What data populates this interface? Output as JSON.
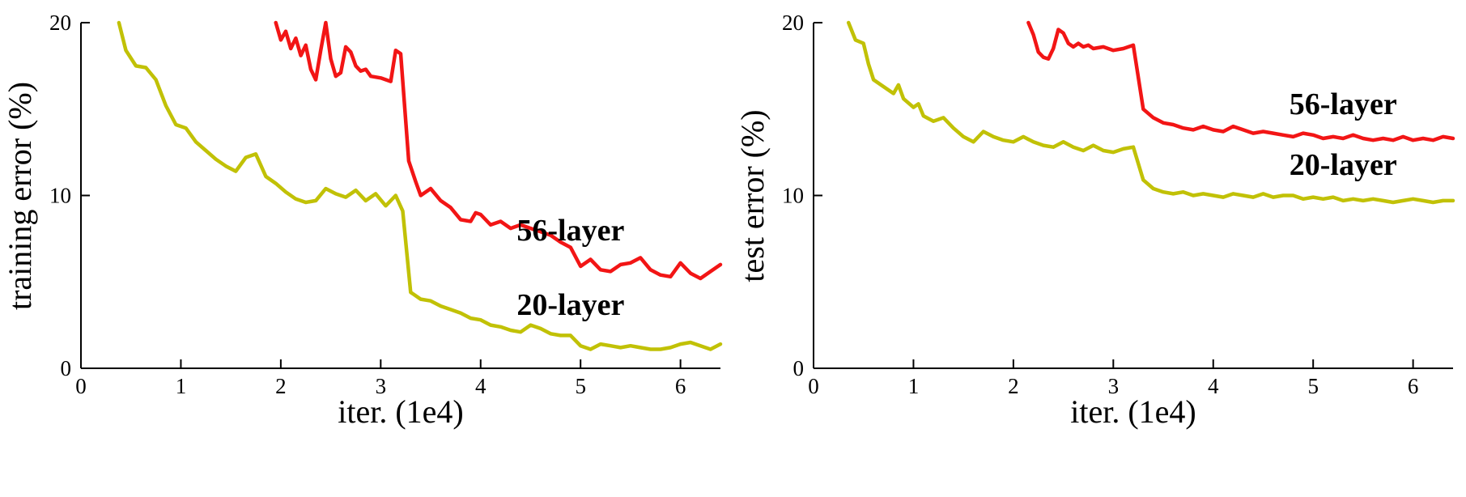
{
  "figure": {
    "background": "#ffffff",
    "line_colors": {
      "layer56": "#f21515",
      "layer20": "#c1c106"
    }
  },
  "chart_data": [
    {
      "type": "line",
      "title": "",
      "ylabel": "training error (%)",
      "xlabel": "iter. (1e4)",
      "xlim": [
        0,
        6.4
      ],
      "ylim": [
        0,
        20
      ],
      "xticks": [
        0,
        1,
        2,
        3,
        4,
        5,
        6
      ],
      "yticks": [
        0,
        10,
        20
      ],
      "grid": false,
      "legend": "none",
      "annotations": [
        {
          "text": "56-layer",
          "x": 4.9,
          "y": 7.4
        },
        {
          "text": "20-layer",
          "x": 4.9,
          "y": 3.1
        }
      ],
      "series": [
        {
          "name": "56-layer",
          "color": "#f21515",
          "points": [
            [
              1.95,
              20
            ],
            [
              2.0,
              19.0
            ],
            [
              2.05,
              19.5
            ],
            [
              2.1,
              18.5
            ],
            [
              2.15,
              19.1
            ],
            [
              2.2,
              18.1
            ],
            [
              2.25,
              18.7
            ],
            [
              2.3,
              17.3
            ],
            [
              2.35,
              16.7
            ],
            [
              2.4,
              18.4
            ],
            [
              2.45,
              20.0
            ],
            [
              2.5,
              17.9
            ],
            [
              2.55,
              16.9
            ],
            [
              2.6,
              17.1
            ],
            [
              2.65,
              18.6
            ],
            [
              2.7,
              18.3
            ],
            [
              2.75,
              17.5
            ],
            [
              2.8,
              17.2
            ],
            [
              2.85,
              17.3
            ],
            [
              2.9,
              16.9
            ],
            [
              3.0,
              16.8
            ],
            [
              3.1,
              16.6
            ],
            [
              3.15,
              18.4
            ],
            [
              3.2,
              18.2
            ],
            [
              3.28,
              12.0
            ],
            [
              3.35,
              10.8
            ],
            [
              3.4,
              10.0
            ],
            [
              3.5,
              10.4
            ],
            [
              3.6,
              9.7
            ],
            [
              3.7,
              9.3
            ],
            [
              3.8,
              8.6
            ],
            [
              3.9,
              8.5
            ],
            [
              3.95,
              9.0
            ],
            [
              4.0,
              8.9
            ],
            [
              4.1,
              8.3
            ],
            [
              4.2,
              8.5
            ],
            [
              4.3,
              8.1
            ],
            [
              4.4,
              8.3
            ],
            [
              4.5,
              8.1
            ],
            [
              4.6,
              7.9
            ],
            [
              4.7,
              7.7
            ],
            [
              4.8,
              7.3
            ],
            [
              4.9,
              7.0
            ],
            [
              5.0,
              5.9
            ],
            [
              5.1,
              6.3
            ],
            [
              5.2,
              5.7
            ],
            [
              5.3,
              5.6
            ],
            [
              5.4,
              6.0
            ],
            [
              5.5,
              6.1
            ],
            [
              5.6,
              6.4
            ],
            [
              5.7,
              5.7
            ],
            [
              5.8,
              5.4
            ],
            [
              5.9,
              5.3
            ],
            [
              6.0,
              6.1
            ],
            [
              6.1,
              5.5
            ],
            [
              6.2,
              5.2
            ],
            [
              6.3,
              5.6
            ],
            [
              6.4,
              6.0
            ]
          ]
        },
        {
          "name": "20-layer",
          "color": "#c1c106",
          "points": [
            [
              0.38,
              20
            ],
            [
              0.45,
              18.4
            ],
            [
              0.55,
              17.5
            ],
            [
              0.65,
              17.4
            ],
            [
              0.75,
              16.7
            ],
            [
              0.85,
              15.2
            ],
            [
              0.95,
              14.1
            ],
            [
              1.05,
              13.9
            ],
            [
              1.15,
              13.1
            ],
            [
              1.25,
              12.6
            ],
            [
              1.35,
              12.1
            ],
            [
              1.45,
              11.7
            ],
            [
              1.55,
              11.4
            ],
            [
              1.65,
              12.2
            ],
            [
              1.75,
              12.4
            ],
            [
              1.85,
              11.1
            ],
            [
              1.95,
              10.7
            ],
            [
              2.05,
              10.2
            ],
            [
              2.15,
              9.8
            ],
            [
              2.25,
              9.6
            ],
            [
              2.35,
              9.7
            ],
            [
              2.45,
              10.4
            ],
            [
              2.55,
              10.1
            ],
            [
              2.65,
              9.9
            ],
            [
              2.75,
              10.3
            ],
            [
              2.85,
              9.7
            ],
            [
              2.95,
              10.1
            ],
            [
              3.05,
              9.4
            ],
            [
              3.15,
              10.0
            ],
            [
              3.22,
              9.1
            ],
            [
              3.3,
              4.4
            ],
            [
              3.4,
              4.0
            ],
            [
              3.5,
              3.9
            ],
            [
              3.6,
              3.6
            ],
            [
              3.7,
              3.4
            ],
            [
              3.8,
              3.2
            ],
            [
              3.9,
              2.9
            ],
            [
              4.0,
              2.8
            ],
            [
              4.1,
              2.5
            ],
            [
              4.2,
              2.4
            ],
            [
              4.3,
              2.2
            ],
            [
              4.4,
              2.1
            ],
            [
              4.5,
              2.5
            ],
            [
              4.6,
              2.3
            ],
            [
              4.7,
              2.0
            ],
            [
              4.8,
              1.9
            ],
            [
              4.9,
              1.9
            ],
            [
              5.0,
              1.3
            ],
            [
              5.1,
              1.1
            ],
            [
              5.2,
              1.4
            ],
            [
              5.3,
              1.3
            ],
            [
              5.4,
              1.2
            ],
            [
              5.5,
              1.3
            ],
            [
              5.6,
              1.2
            ],
            [
              5.7,
              1.1
            ],
            [
              5.8,
              1.1
            ],
            [
              5.9,
              1.2
            ],
            [
              6.0,
              1.4
            ],
            [
              6.1,
              1.5
            ],
            [
              6.2,
              1.3
            ],
            [
              6.3,
              1.1
            ],
            [
              6.4,
              1.4
            ]
          ]
        }
      ]
    },
    {
      "type": "line",
      "title": "",
      "ylabel": "test error (%)",
      "xlabel": "iter. (1e4)",
      "xlim": [
        0,
        6.4
      ],
      "ylim": [
        0,
        20
      ],
      "xticks": [
        0,
        1,
        2,
        3,
        4,
        5,
        6
      ],
      "yticks": [
        0,
        10,
        20
      ],
      "grid": false,
      "legend": "none",
      "annotations": [
        {
          "text": "56-layer",
          "x": 5.3,
          "y": 14.7
        },
        {
          "text": "20-layer",
          "x": 5.3,
          "y": 11.2
        }
      ],
      "series": [
        {
          "name": "56-layer",
          "color": "#f21515",
          "points": [
            [
              2.15,
              20
            ],
            [
              2.2,
              19.3
            ],
            [
              2.25,
              18.3
            ],
            [
              2.3,
              18.0
            ],
            [
              2.35,
              17.9
            ],
            [
              2.4,
              18.5
            ],
            [
              2.45,
              19.6
            ],
            [
              2.5,
              19.4
            ],
            [
              2.55,
              18.8
            ],
            [
              2.6,
              18.6
            ],
            [
              2.65,
              18.8
            ],
            [
              2.7,
              18.6
            ],
            [
              2.75,
              18.7
            ],
            [
              2.8,
              18.5
            ],
            [
              2.9,
              18.6
            ],
            [
              3.0,
              18.4
            ],
            [
              3.1,
              18.5
            ],
            [
              3.2,
              18.7
            ],
            [
              3.3,
              15.0
            ],
            [
              3.4,
              14.5
            ],
            [
              3.5,
              14.2
            ],
            [
              3.6,
              14.1
            ],
            [
              3.7,
              13.9
            ],
            [
              3.8,
              13.8
            ],
            [
              3.9,
              14.0
            ],
            [
              4.0,
              13.8
            ],
            [
              4.1,
              13.7
            ],
            [
              4.2,
              14.0
            ],
            [
              4.3,
              13.8
            ],
            [
              4.4,
              13.6
            ],
            [
              4.5,
              13.7
            ],
            [
              4.6,
              13.6
            ],
            [
              4.7,
              13.5
            ],
            [
              4.8,
              13.4
            ],
            [
              4.9,
              13.6
            ],
            [
              5.0,
              13.5
            ],
            [
              5.1,
              13.3
            ],
            [
              5.2,
              13.4
            ],
            [
              5.3,
              13.3
            ],
            [
              5.4,
              13.5
            ],
            [
              5.5,
              13.3
            ],
            [
              5.6,
              13.2
            ],
            [
              5.7,
              13.3
            ],
            [
              5.8,
              13.2
            ],
            [
              5.9,
              13.4
            ],
            [
              6.0,
              13.2
            ],
            [
              6.1,
              13.3
            ],
            [
              6.2,
              13.2
            ],
            [
              6.3,
              13.4
            ],
            [
              6.4,
              13.3
            ]
          ]
        },
        {
          "name": "20-layer",
          "color": "#c1c106",
          "points": [
            [
              0.35,
              20
            ],
            [
              0.42,
              19.0
            ],
            [
              0.5,
              18.8
            ],
            [
              0.55,
              17.6
            ],
            [
              0.6,
              16.7
            ],
            [
              0.7,
              16.3
            ],
            [
              0.8,
              15.9
            ],
            [
              0.85,
              16.4
            ],
            [
              0.9,
              15.6
            ],
            [
              1.0,
              15.1
            ],
            [
              1.05,
              15.3
            ],
            [
              1.1,
              14.6
            ],
            [
              1.2,
              14.3
            ],
            [
              1.3,
              14.5
            ],
            [
              1.4,
              13.9
            ],
            [
              1.5,
              13.4
            ],
            [
              1.6,
              13.1
            ],
            [
              1.7,
              13.7
            ],
            [
              1.8,
              13.4
            ],
            [
              1.9,
              13.2
            ],
            [
              2.0,
              13.1
            ],
            [
              2.1,
              13.4
            ],
            [
              2.2,
              13.1
            ],
            [
              2.3,
              12.9
            ],
            [
              2.4,
              12.8
            ],
            [
              2.5,
              13.1
            ],
            [
              2.6,
              12.8
            ],
            [
              2.7,
              12.6
            ],
            [
              2.8,
              12.9
            ],
            [
              2.9,
              12.6
            ],
            [
              3.0,
              12.5
            ],
            [
              3.1,
              12.7
            ],
            [
              3.2,
              12.8
            ],
            [
              3.3,
              10.9
            ],
            [
              3.4,
              10.4
            ],
            [
              3.5,
              10.2
            ],
            [
              3.6,
              10.1
            ],
            [
              3.7,
              10.2
            ],
            [
              3.8,
              10.0
            ],
            [
              3.9,
              10.1
            ],
            [
              4.0,
              10.0
            ],
            [
              4.1,
              9.9
            ],
            [
              4.2,
              10.1
            ],
            [
              4.3,
              10.0
            ],
            [
              4.4,
              9.9
            ],
            [
              4.5,
              10.1
            ],
            [
              4.6,
              9.9
            ],
            [
              4.7,
              10.0
            ],
            [
              4.8,
              10.0
            ],
            [
              4.9,
              9.8
            ],
            [
              5.0,
              9.9
            ],
            [
              5.1,
              9.8
            ],
            [
              5.2,
              9.9
            ],
            [
              5.3,
              9.7
            ],
            [
              5.4,
              9.8
            ],
            [
              5.5,
              9.7
            ],
            [
              5.6,
              9.8
            ],
            [
              5.7,
              9.7
            ],
            [
              5.8,
              9.6
            ],
            [
              5.9,
              9.7
            ],
            [
              6.0,
              9.8
            ],
            [
              6.1,
              9.7
            ],
            [
              6.2,
              9.6
            ],
            [
              6.3,
              9.7
            ],
            [
              6.4,
              9.7
            ]
          ]
        }
      ]
    }
  ]
}
